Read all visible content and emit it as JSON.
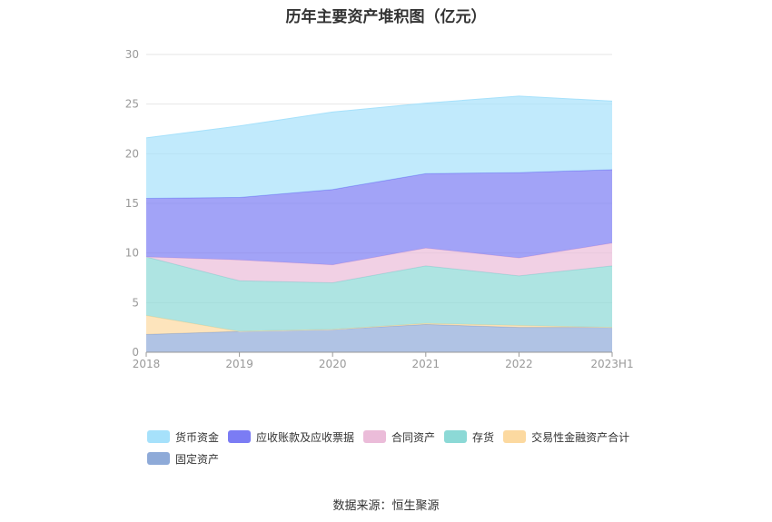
{
  "chart_data": {
    "type": "area",
    "stacked": true,
    "title": "历年主要资产堆积图（亿元）",
    "categories": [
      "2018",
      "2019",
      "2020",
      "2021",
      "2022",
      "2023H1"
    ],
    "ylim": [
      0,
      30
    ],
    "yticks": [
      "0",
      "5",
      "10",
      "15",
      "20",
      "25",
      "30"
    ],
    "grid": true,
    "legend_position": "bottom",
    "series": [
      {
        "name": "固定资产",
        "color": "#8eaad8",
        "values": [
          1.8,
          2.1,
          2.3,
          2.8,
          2.5,
          2.5
        ]
      },
      {
        "name": "交易性金融资产合计",
        "color": "#fcd9a0",
        "values": [
          1.9,
          0.0,
          0.0,
          0.1,
          0.2,
          0.0
        ]
      },
      {
        "name": "存货",
        "color": "#8cd9d6",
        "values": [
          5.9,
          5.1,
          4.7,
          5.8,
          5.0,
          6.2
        ]
      },
      {
        "name": "合同资产",
        "color": "#ebbcd9",
        "values": [
          0.0,
          2.1,
          1.8,
          1.8,
          1.8,
          2.3
        ]
      },
      {
        "name": "应收账款及应收票据",
        "color": "#7b7cf4",
        "values": [
          5.9,
          6.3,
          7.6,
          7.5,
          8.6,
          7.4
        ]
      },
      {
        "name": "货币资金",
        "color": "#a6e1fb",
        "values": [
          6.1,
          7.2,
          7.8,
          7.1,
          7.7,
          6.9
        ]
      }
    ],
    "legend_order": [
      "货币资金",
      "应收账款及应收票据",
      "合同资产",
      "存货",
      "交易性金融资产合计",
      "固定资产"
    ]
  },
  "source": "数据来源：恒生聚源"
}
